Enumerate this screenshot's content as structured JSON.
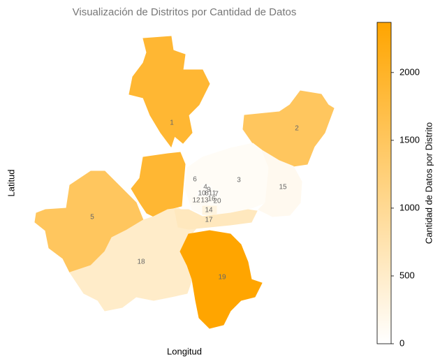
{
  "chart_data": {
    "type": "choropleth",
    "title": "Visualización de Distritos por Cantidad de Datos",
    "x_label": "Longitud",
    "y_label": "Latitud",
    "colorbar_label": "Cantidad de Datos por Distrito",
    "clim": [
      0,
      2370
    ],
    "cticks": [
      0,
      500,
      1000,
      1500,
      2000
    ],
    "cmap": [
      "#ffffff",
      "#ffa500"
    ],
    "districts": [
      {
        "label": "1",
        "value": 1900
      },
      {
        "label": "2",
        "value": 1500
      },
      {
        "label": "3",
        "value": 80
      },
      {
        "label": "4",
        "value": 60
      },
      {
        "label": "5",
        "value": 1500
      },
      {
        "label": "6",
        "value": 1900
      },
      {
        "label": "7",
        "value": 50
      },
      {
        "label": "8",
        "value": 50
      },
      {
        "label": "9",
        "value": 60
      },
      {
        "label": "10",
        "value": 50
      },
      {
        "label": "11",
        "value": 50
      },
      {
        "label": "12",
        "value": 120
      },
      {
        "label": "13",
        "value": 120
      },
      {
        "label": "14",
        "value": 300
      },
      {
        "label": "15",
        "value": 150
      },
      {
        "label": "16",
        "value": 80
      },
      {
        "label": "17",
        "value": 600
      },
      {
        "label": "18",
        "value": 500
      },
      {
        "label": "19",
        "value": 2370
      },
      {
        "label": "20",
        "value": 80
      }
    ]
  }
}
